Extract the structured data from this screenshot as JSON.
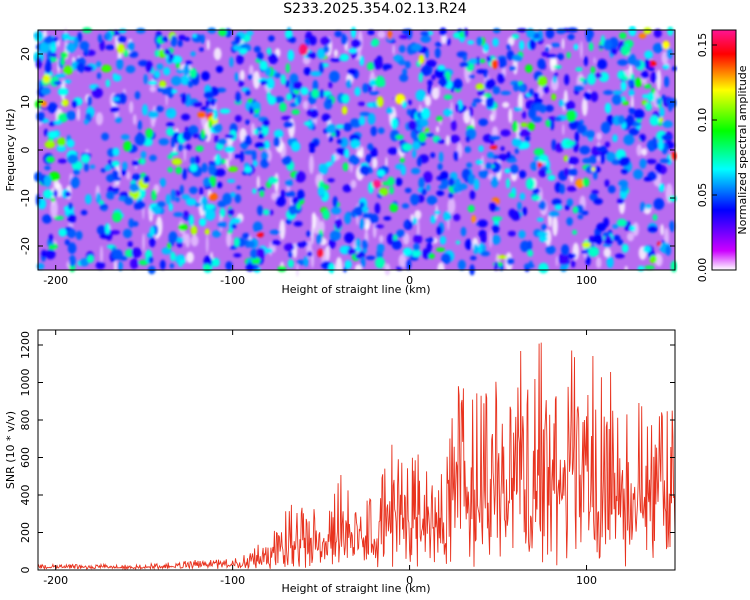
{
  "title": "S233.2025.354.02.13.R24",
  "chart_data": [
    {
      "type": "heatmap",
      "xlabel": "Height of straight line (km)",
      "ylabel": "Frequency (Hz)",
      "xlim": [
        -210,
        150
      ],
      "ylim": [
        -25,
        25
      ],
      "x_ticks": [
        -200,
        -100,
        0,
        100
      ],
      "x_tick_labels": [
        "-200",
        "-100",
        "0",
        "100"
      ],
      "y_ticks": [
        -20,
        -10,
        0,
        10,
        20
      ],
      "y_tick_labels": [
        "-20",
        "-10",
        "0",
        "10",
        "20"
      ],
      "colorbar": {
        "label": "Normalized spectral amplitude",
        "range": [
          0,
          0.16
        ],
        "ticks": [
          0,
          0.05,
          0.1,
          0.15
        ],
        "tick_labels": [
          "0.00",
          "0.05",
          "0.10",
          "0.15"
        ],
        "colors": [
          "#ffffff",
          "#cc00ff",
          "#0000ff",
          "#00ffff",
          "#00ff00",
          "#ffff00",
          "#ff0000",
          "#ff1493"
        ]
      },
      "description_values": {
        "typical_amplitude": 0.03,
        "peak_amplitude": 0.15
      }
    },
    {
      "type": "line",
      "xlabel": "Height of straight line (km)",
      "ylabel": "SNR (10 * v/v)",
      "xlim": [
        -210,
        150
      ],
      "ylim": [
        0,
        1280
      ],
      "x_ticks": [
        -200,
        -100,
        0,
        100
      ],
      "x_tick_labels": [
        "-200",
        "-100",
        "0",
        "100"
      ],
      "y_ticks": [
        0,
        200,
        400,
        600,
        800,
        1000,
        1200
      ],
      "y_tick_labels": [
        "0",
        "200",
        "400",
        "600",
        "800",
        "1000",
        "1200"
      ],
      "series": [
        {
          "name": "SNR",
          "color": "#e8321e",
          "envelope": {
            "x": [
              -210,
              -150,
              -130,
              -100,
              -90,
              -75,
              -65,
              -50,
              -40,
              -30,
              -20,
              -10,
              0,
              10,
              20,
              28,
              35,
              45,
              55,
              62,
              66,
              75,
              85,
              95,
              105,
              115,
              125,
              135,
              145,
              150
            ],
            "max": [
              30,
              30,
              50,
              60,
              100,
              220,
              420,
              330,
              540,
              450,
              370,
              680,
              700,
              580,
              640,
              1050,
              950,
              1000,
              1050,
              1260,
              1100,
              1260,
              1050,
              1250,
              1150,
              1250,
              900,
              1000,
              900,
              900
            ],
            "min": [
              5,
              5,
              5,
              5,
              5,
              5,
              5,
              5,
              5,
              5,
              5,
              5,
              5,
              5,
              5,
              10,
              10,
              10,
              10,
              10,
              10,
              10,
              10,
              10,
              10,
              10,
              10,
              10,
              10,
              10
            ]
          }
        }
      ]
    }
  ]
}
